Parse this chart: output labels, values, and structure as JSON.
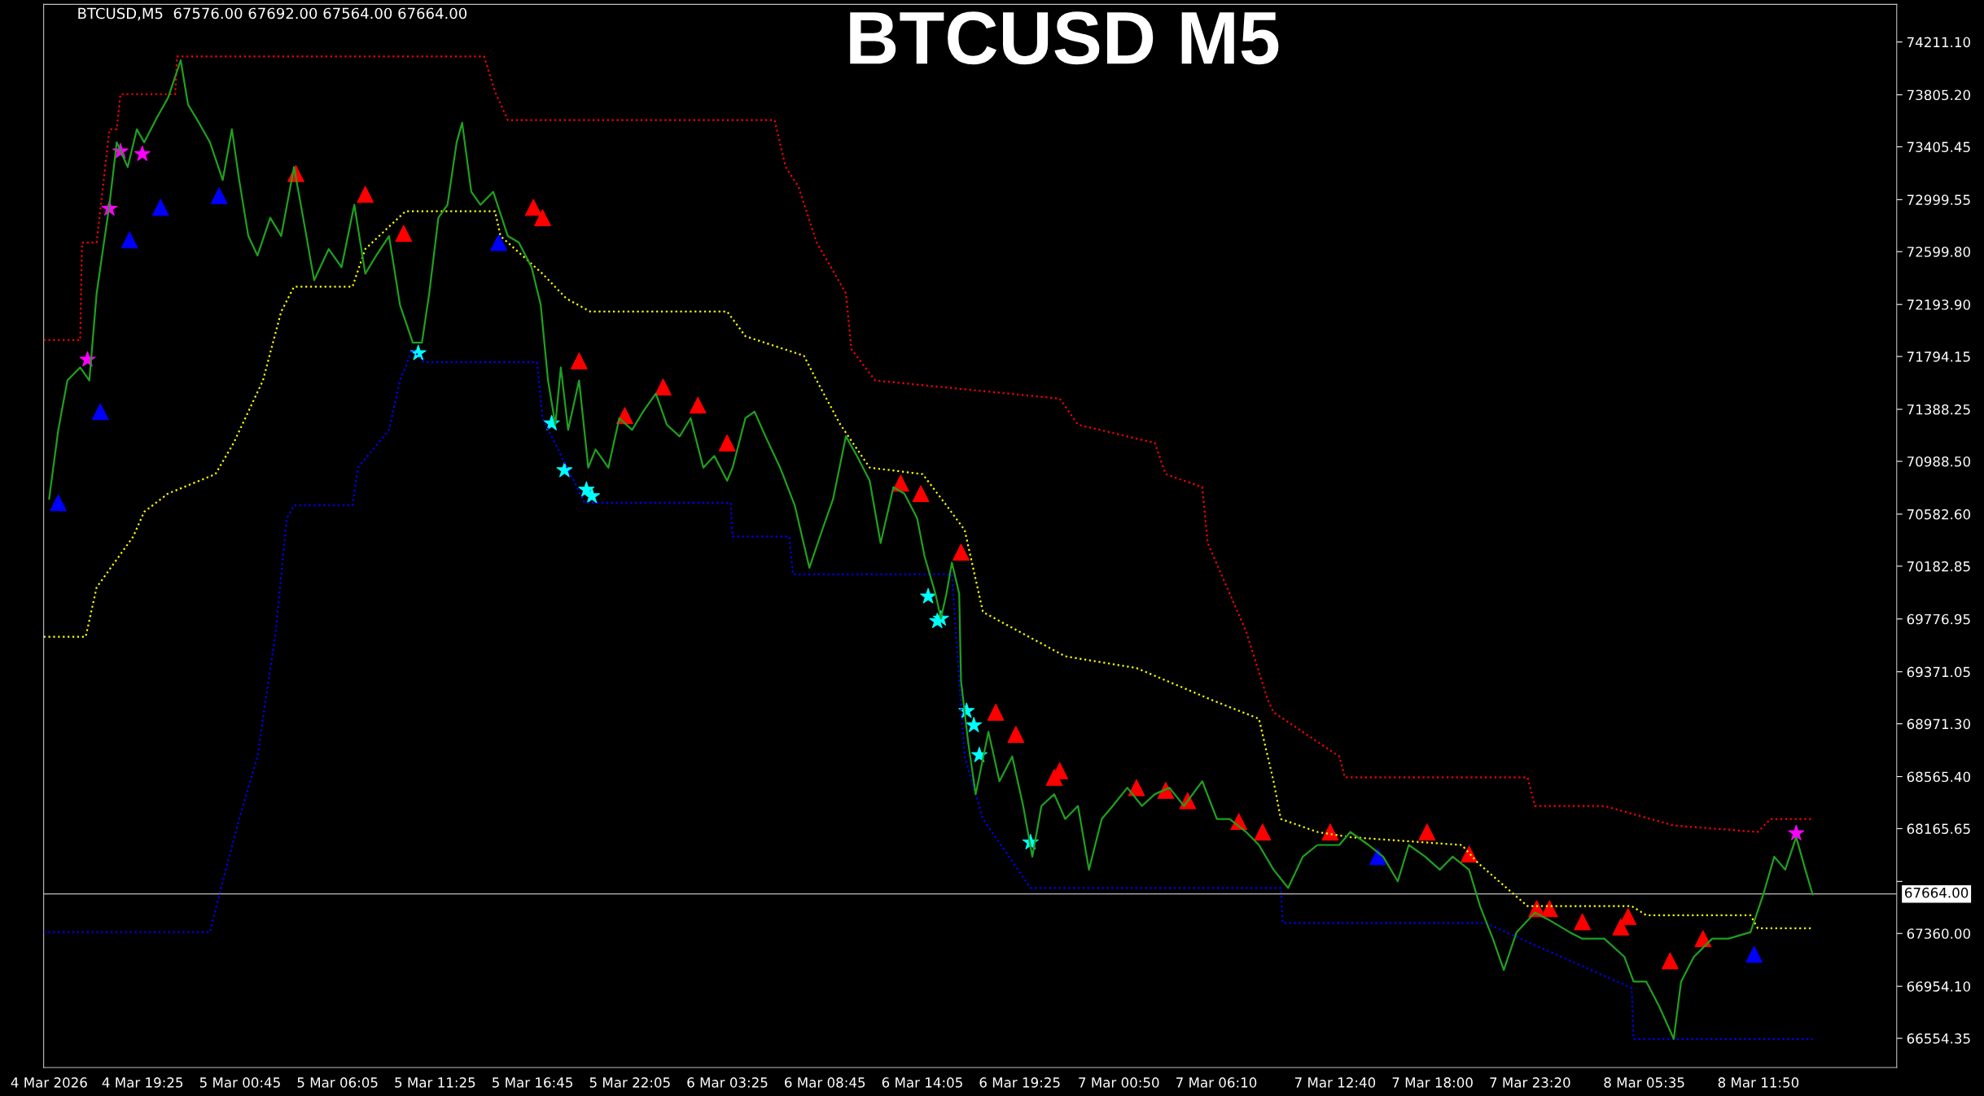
{
  "chart_data": {
    "type": "line",
    "title": "BTCUSD M5",
    "annotations": [
      "BTCUSD,M5  67576.00 67692.00 67564.00 67664.00"
    ],
    "xlim": [
      "2026-03-04T14:00",
      "2026-03-08T19:24"
    ],
    "xticks": [
      {
        "value": "2026-03-04T14:18",
        "label": "4 Mar 2026"
      },
      {
        "value": "2026-03-04T19:25",
        "label": "4 Mar 19:25"
      },
      {
        "value": "2026-03-05T00:45",
        "label": "5 Mar 00:45"
      },
      {
        "value": "2026-03-05T06:05",
        "label": "5 Mar 06:05"
      },
      {
        "value": "2026-03-05T11:25",
        "label": "5 Mar 11:25"
      },
      {
        "value": "2026-03-05T16:45",
        "label": "5 Mar 16:45"
      },
      {
        "value": "2026-03-05T22:05",
        "label": "5 Mar 22:05"
      },
      {
        "value": "2026-03-06T03:25",
        "label": "6 Mar 03:25"
      },
      {
        "value": "2026-03-06T08:45",
        "label": "6 Mar 08:45"
      },
      {
        "value": "2026-03-06T14:05",
        "label": "6 Mar 14:05"
      },
      {
        "value": "2026-03-06T19:25",
        "label": "6 Mar 19:25"
      },
      {
        "value": "2026-03-07T00:50",
        "label": "7 Mar 00:50"
      },
      {
        "value": "2026-03-07T06:10",
        "label": "7 Mar 06:10"
      },
      {
        "value": "2026-03-07T12:40",
        "label": "7 Mar 12:40"
      },
      {
        "value": "2026-03-07T18:00",
        "label": "7 Mar 18:00"
      },
      {
        "value": "2026-03-07T23:20",
        "label": "7 Mar 23:20"
      },
      {
        "value": "2026-03-08T05:35",
        "label": "8 Mar 05:35"
      },
      {
        "value": "2026-03-08T11:50",
        "label": "8 Mar 11:50"
      }
    ],
    "ylim": [
      66330,
      74500
    ],
    "yticks": [
      {
        "value": 74211.1,
        "label": "74211.10"
      },
      {
        "value": 73805.2,
        "label": "73805.20"
      },
      {
        "value": 73405.45,
        "label": "73405.45"
      },
      {
        "value": 72999.55,
        "label": "72999.55"
      },
      {
        "value": 72599.8,
        "label": "72599.80"
      },
      {
        "value": 72193.9,
        "label": "72193.90"
      },
      {
        "value": 71794.15,
        "label": "71794.15"
      },
      {
        "value": 71388.25,
        "label": "71388.25"
      },
      {
        "value": 70988.5,
        "label": "70988.50"
      },
      {
        "value": 70582.6,
        "label": "70582.60"
      },
      {
        "value": 70182.85,
        "label": "70182.85"
      },
      {
        "value": 69776.95,
        "label": "69776.95"
      },
      {
        "value": 69371.05,
        "label": "69371.05"
      },
      {
        "value": 68971.3,
        "label": "68971.30"
      },
      {
        "value": 68565.4,
        "label": "68565.40"
      },
      {
        "value": 68165.65,
        "label": "68165.65"
      },
      {
        "value": 67759.75,
        "label": null
      },
      {
        "value": 67360,
        "label": "67360.00"
      },
      {
        "value": 66954.1,
        "label": "66954.10"
      },
      {
        "value": 66554.35,
        "label": "66554.35"
      }
    ],
    "ref_lines": [
      {
        "axis": "y",
        "value": 67664,
        "label": "67664.00",
        "color": "#c0c0c0"
      }
    ],
    "grid": false,
    "legend": false,
    "series": [
      {
        "type": "line",
        "line_style": "dotted",
        "color": "#ff0000",
        "x": [
          "2026-03-04T14:00",
          "2026-03-04T16:00",
          "2026-03-04T16:06",
          "2026-03-04T16:54",
          "2026-03-04T17:36",
          "2026-03-04T18:00",
          "2026-03-04T18:12",
          "2026-03-04T21:12",
          "2026-03-04T21:18",
          "2026-03-05T14:06",
          "2026-03-05T14:42",
          "2026-03-05T15:24",
          "2026-03-06T06:00",
          "2026-03-06T06:36",
          "2026-03-06T07:18",
          "2026-03-06T08:18",
          "2026-03-06T09:54",
          "2026-03-06T10:12",
          "2026-03-06T11:30",
          "2026-03-06T21:36",
          "2026-03-06T22:36",
          "2026-03-07T02:48",
          "2026-03-07T03:24",
          "2026-03-07T05:24",
          "2026-03-07T05:42",
          "2026-03-07T07:48",
          "2026-03-07T09:00",
          "2026-03-07T09:18",
          "2026-03-07T12:54",
          "2026-03-07T13:12",
          "2026-03-07T23:12",
          "2026-03-07T23:36",
          "2026-03-08T03:24",
          "2026-03-08T07:12",
          "2026-03-08T11:48",
          "2026-03-08T12:30",
          "2026-03-08T14:48"
        ],
        "values": [
          71920,
          71920,
          72670,
          72670,
          73540,
          73540,
          73810,
          73810,
          74100,
          74100,
          73830,
          73610,
          73610,
          73250,
          73100,
          72670,
          72280,
          71850,
          71610,
          71470,
          71270,
          71130,
          70890,
          70790,
          70360,
          69680,
          69150,
          69060,
          68720,
          68560,
          68560,
          68340,
          68340,
          68190,
          68140,
          68240,
          68240
        ]
      },
      {
        "type": "line",
        "line_style": "dotted",
        "color": "#ffff00",
        "x": [
          "2026-03-04T14:00",
          "2026-03-04T16:18",
          "2026-03-04T16:54",
          "2026-03-04T18:54",
          "2026-03-04T19:30",
          "2026-03-04T20:48",
          "2026-03-04T23:24",
          "2026-03-05T00:24",
          "2026-03-05T02:00",
          "2026-03-05T03:00",
          "2026-03-05T03:42",
          "2026-03-05T06:54",
          "2026-03-05T07:36",
          "2026-03-05T09:48",
          "2026-03-05T14:42",
          "2026-03-05T15:00",
          "2026-03-05T17:18",
          "2026-03-05T18:36",
          "2026-03-05T19:54",
          "2026-03-06T03:24",
          "2026-03-06T04:24",
          "2026-03-06T07:36",
          "2026-03-06T08:18",
          "2026-03-06T09:36",
          "2026-03-06T11:12",
          "2026-03-06T14:06",
          "2026-03-06T15:24",
          "2026-03-06T16:24",
          "2026-03-06T17:24",
          "2026-03-06T21:54",
          "2026-03-07T01:48",
          "2026-03-07T06:00",
          "2026-03-07T08:30",
          "2026-03-07T09:18",
          "2026-03-07T09:42",
          "2026-03-07T11:42",
          "2026-03-07T13:30",
          "2026-03-07T19:36",
          "2026-03-07T20:30",
          "2026-03-07T23:12",
          "2026-03-08T04:54",
          "2026-03-08T05:42",
          "2026-03-08T11:24",
          "2026-03-08T11:48",
          "2026-03-08T14:48"
        ],
        "values": [
          69640,
          69640,
          70020,
          70410,
          70600,
          70740,
          70890,
          71130,
          71610,
          72140,
          72330,
          72330,
          72620,
          72910,
          72910,
          72720,
          72430,
          72240,
          72140,
          72140,
          71950,
          71800,
          71610,
          71270,
          70940,
          70890,
          70650,
          70460,
          69830,
          69490,
          69400,
          69150,
          69010,
          68530,
          68240,
          68140,
          68100,
          68040,
          67900,
          67570,
          67570,
          67500,
          67500,
          67400,
          67400
        ]
      },
      {
        "type": "line",
        "line_style": "dotted",
        "color": "#0000ff",
        "x": [
          "2026-03-04T14:00",
          "2026-03-04T23:06",
          "2026-03-04T23:48",
          "2026-03-05T00:42",
          "2026-03-05T01:42",
          "2026-03-05T02:42",
          "2026-03-05T03:18",
          "2026-03-05T03:42",
          "2026-03-05T06:54",
          "2026-03-05T07:12",
          "2026-03-05T08:54",
          "2026-03-05T09:30",
          "2026-03-05T10:12",
          "2026-03-05T10:48",
          "2026-03-05T17:00",
          "2026-03-05T17:18",
          "2026-03-05T19:36",
          "2026-03-06T03:36",
          "2026-03-06T03:42",
          "2026-03-06T06:48",
          "2026-03-06T07:00",
          "2026-03-06T15:42",
          "2026-03-06T16:06",
          "2026-03-06T16:24",
          "2026-03-06T17:24",
          "2026-03-06T20:00",
          "2026-03-07T09:42",
          "2026-03-07T09:48",
          "2026-03-07T20:54",
          "2026-03-08T04:54",
          "2026-03-08T05:00",
          "2026-03-08T14:48"
        ],
        "values": [
          67370,
          67370,
          67760,
          68240,
          68720,
          69680,
          70550,
          70650,
          70650,
          70940,
          71230,
          71610,
          71850,
          71750,
          71750,
          71320,
          70670,
          70670,
          70410,
          70410,
          70120,
          70120,
          69300,
          68720,
          68240,
          67710,
          67710,
          67440,
          67440,
          66940,
          66550,
          66550
        ]
      },
      {
        "type": "line",
        "line_style": "solid",
        "color": "#1fa01f",
        "x": [
          "2026-03-04T14:18",
          "2026-03-04T14:48",
          "2026-03-04T15:18",
          "2026-03-04T16:00",
          "2026-03-04T16:30",
          "2026-03-04T16:54",
          "2026-03-04T17:18",
          "2026-03-04T17:36",
          "2026-03-04T18:00",
          "2026-03-04T18:36",
          "2026-03-04T19:06",
          "2026-03-04T19:30",
          "2026-03-04T20:12",
          "2026-03-04T20:48",
          "2026-03-04T21:30",
          "2026-03-04T21:54",
          "2026-03-04T22:30",
          "2026-03-04T23:06",
          "2026-03-04T23:48",
          "2026-03-05T00:18",
          "2026-03-05T00:42",
          "2026-03-05T01:12",
          "2026-03-05T01:42",
          "2026-03-05T02:24",
          "2026-03-05T03:00",
          "2026-03-05T03:42",
          "2026-03-05T04:12",
          "2026-03-05T04:48",
          "2026-03-05T05:36",
          "2026-03-05T06:18",
          "2026-03-05T07:00",
          "2026-03-05T07:36",
          "2026-03-05T08:12",
          "2026-03-05T08:54",
          "2026-03-05T09:30",
          "2026-03-05T10:12",
          "2026-03-05T10:42",
          "2026-03-05T11:06",
          "2026-03-05T11:36",
          "2026-03-05T12:06",
          "2026-03-05T12:36",
          "2026-03-05T12:54",
          "2026-03-05T13:24",
          "2026-03-05T13:54",
          "2026-03-05T14:36",
          "2026-03-05T15:24",
          "2026-03-05T16:00",
          "2026-03-05T16:42",
          "2026-03-05T17:12",
          "2026-03-05T17:36",
          "2026-03-05T18:00",
          "2026-03-05T18:18",
          "2026-03-05T18:42",
          "2026-03-05T19:18",
          "2026-03-05T19:48",
          "2026-03-05T20:12",
          "2026-03-05T20:54",
          "2026-03-05T21:30",
          "2026-03-05T22:12",
          "2026-03-05T22:48",
          "2026-03-05T23:30",
          "2026-03-06T00:06",
          "2026-03-06T00:48",
          "2026-03-06T01:24",
          "2026-03-06T02:06",
          "2026-03-06T02:42",
          "2026-03-06T03:24",
          "2026-03-06T03:42",
          "2026-03-06T04:24",
          "2026-03-06T04:54",
          "2026-03-06T05:30",
          "2026-03-06T06:18",
          "2026-03-06T07:06",
          "2026-03-06T07:54",
          "2026-03-06T08:36",
          "2026-03-06T09:12",
          "2026-03-06T09:54",
          "2026-03-06T10:30",
          "2026-03-06T11:12",
          "2026-03-06T11:48",
          "2026-03-06T12:30",
          "2026-03-06T13:06",
          "2026-03-06T13:48",
          "2026-03-06T14:12",
          "2026-03-06T14:48",
          "2026-03-06T15:06",
          "2026-03-06T15:24",
          "2026-03-06T15:42",
          "2026-03-06T16:06",
          "2026-03-06T16:12",
          "2026-03-06T16:36",
          "2026-03-06T17:00",
          "2026-03-06T17:42",
          "2026-03-06T18:18",
          "2026-03-06T19:00",
          "2026-03-06T19:36",
          "2026-03-06T20:06",
          "2026-03-06T20:36",
          "2026-03-06T21:18",
          "2026-03-06T21:54",
          "2026-03-06T22:36",
          "2026-03-06T23:12",
          "2026-03-06T23:54",
          "2026-03-07T00:30",
          "2026-03-07T01:18",
          "2026-03-07T02:06",
          "2026-03-07T02:48",
          "2026-03-07T03:36",
          "2026-03-07T04:24",
          "2026-03-07T05:24",
          "2026-03-07T06:12",
          "2026-03-07T06:54",
          "2026-03-07T07:48",
          "2026-03-07T08:30",
          "2026-03-07T09:18",
          "2026-03-07T10:06",
          "2026-03-07T10:54",
          "2026-03-07T11:42",
          "2026-03-07T12:54",
          "2026-03-07T13:30",
          "2026-03-07T14:30",
          "2026-03-07T15:18",
          "2026-03-07T16:06",
          "2026-03-07T16:42",
          "2026-03-07T17:36",
          "2026-03-07T18:24",
          "2026-03-07T19:06",
          "2026-03-07T20:00",
          "2026-03-07T20:36",
          "2026-03-07T21:18",
          "2026-03-07T21:54",
          "2026-03-07T22:36",
          "2026-03-07T23:36",
          "2026-03-08T00:18",
          "2026-03-08T01:30",
          "2026-03-08T02:12",
          "2026-03-08T03:24",
          "2026-03-08T04:30",
          "2026-03-08T05:00",
          "2026-03-08T05:42",
          "2026-03-08T06:24",
          "2026-03-08T07:12",
          "2026-03-08T07:36",
          "2026-03-08T08:18",
          "2026-03-08T09:18",
          "2026-03-08T10:12",
          "2026-03-08T11:24",
          "2026-03-08T12:06",
          "2026-03-08T12:42",
          "2026-03-08T13:18",
          "2026-03-08T13:54",
          "2026-03-08T14:24",
          "2026-03-08T14:48"
        ],
        "values": [
          70700,
          71230,
          71610,
          71710,
          71610,
          72280,
          72670,
          72960,
          73440,
          73250,
          73540,
          73440,
          73630,
          73780,
          74070,
          73730,
          73590,
          73440,
          73150,
          73540,
          73150,
          72720,
          72570,
          72860,
          72720,
          73250,
          72860,
          72380,
          72620,
          72480,
          72960,
          72430,
          72570,
          72720,
          72190,
          71900,
          71900,
          72280,
          72860,
          72960,
          73440,
          73590,
          73060,
          72960,
          73060,
          72720,
          72670,
          72480,
          72190,
          71610,
          71270,
          71710,
          71230,
          71610,
          70940,
          71080,
          70940,
          71320,
          71230,
          71370,
          71510,
          71270,
          71180,
          71320,
          70940,
          71030,
          70840,
          70940,
          71320,
          71370,
          71180,
          70940,
          70650,
          70170,
          70460,
          70700,
          71180,
          71030,
          70840,
          70360,
          70790,
          70740,
          70550,
          70260,
          69970,
          69780,
          69970,
          70210,
          69970,
          69300,
          68820,
          68430,
          68910,
          68530,
          68720,
          68340,
          67950,
          68340,
          68430,
          68240,
          68340,
          67850,
          68240,
          68340,
          68480,
          68340,
          68430,
          68480,
          68340,
          68530,
          68240,
          68240,
          68140,
          68040,
          67850,
          67710,
          67950,
          68040,
          68040,
          68140,
          68040,
          67950,
          67760,
          68040,
          67950,
          67850,
          67950,
          67850,
          67570,
          67320,
          67080,
          67370,
          67520,
          67470,
          67370,
          67320,
          67320,
          67180,
          66990,
          66990,
          66800,
          66550,
          66990,
          67180,
          67320,
          67320,
          67370,
          67660,
          67950,
          67850,
          68100,
          67850,
          67660
        ]
      },
      {
        "type": "scatter",
        "marker": "triangle",
        "color": "#ff0000",
        "x": [
          "2026-03-05T03:48",
          "2026-03-05T07:36",
          "2026-03-05T09:42",
          "2026-03-05T16:48",
          "2026-03-05T17:18",
          "2026-03-05T19:18",
          "2026-03-05T21:48",
          "2026-03-05T23:54",
          "2026-03-06T01:48",
          "2026-03-06T03:24",
          "2026-03-06T12:54",
          "2026-03-06T14:00",
          "2026-03-06T16:12",
          "2026-03-06T18:06",
          "2026-03-06T19:12",
          "2026-03-06T21:18",
          "2026-03-06T21:36",
          "2026-03-07T01:48",
          "2026-03-07T03:24",
          "2026-03-07T04:36",
          "2026-03-07T07:24",
          "2026-03-07T08:42",
          "2026-03-07T12:24",
          "2026-03-07T17:42",
          "2026-03-07T20:00",
          "2026-03-07T23:42",
          "2026-03-08T00:24",
          "2026-03-08T02:12",
          "2026-03-08T04:18",
          "2026-03-08T04:42",
          "2026-03-08T07:00",
          "2026-03-08T08:48"
        ],
        "values": [
          73200,
          73040,
          72740,
          72940,
          72860,
          71760,
          71340,
          71560,
          71420,
          71130,
          70820,
          70740,
          70290,
          69060,
          68890,
          68560,
          68610,
          68480,
          68460,
          68380,
          68220,
          68140,
          68140,
          68140,
          67970,
          67550,
          67550,
          67450,
          67410,
          67490,
          67150,
          67320
        ]
      },
      {
        "type": "scatter",
        "marker": "triangle",
        "color": "#0000ff",
        "x": [
          "2026-03-04T14:48",
          "2026-03-04T17:06",
          "2026-03-04T18:42",
          "2026-03-04T20:24",
          "2026-03-04T23:36",
          "2026-03-05T14:54",
          "2026-03-07T15:00",
          "2026-03-08T11:36"
        ],
        "values": [
          70670,
          71370,
          72690,
          72940,
          73030,
          72670,
          67950,
          67200
        ]
      },
      {
        "type": "scatter",
        "marker": "star",
        "color": "#ff00ff",
        "x": [
          "2026-03-04T16:24",
          "2026-03-04T17:36",
          "2026-03-04T18:12",
          "2026-03-04T19:24",
          "2026-03-08T13:54"
        ],
        "values": [
          71770,
          72930,
          73370,
          73350,
          68130
        ]
      },
      {
        "type": "scatter",
        "marker": "star",
        "color": "#00ffff",
        "x": [
          "2026-03-05T10:30",
          "2026-03-05T17:48",
          "2026-03-05T18:30",
          "2026-03-05T19:42",
          "2026-03-05T20:00",
          "2026-03-06T14:24",
          "2026-03-06T14:54",
          "2026-03-06T15:06",
          "2026-03-06T16:30",
          "2026-03-06T16:54",
          "2026-03-06T17:12",
          "2026-03-06T20:00"
        ],
        "values": [
          71820,
          71280,
          70920,
          70770,
          70720,
          69950,
          69760,
          69780,
          69070,
          68960,
          68730,
          68060
        ]
      }
    ]
  }
}
